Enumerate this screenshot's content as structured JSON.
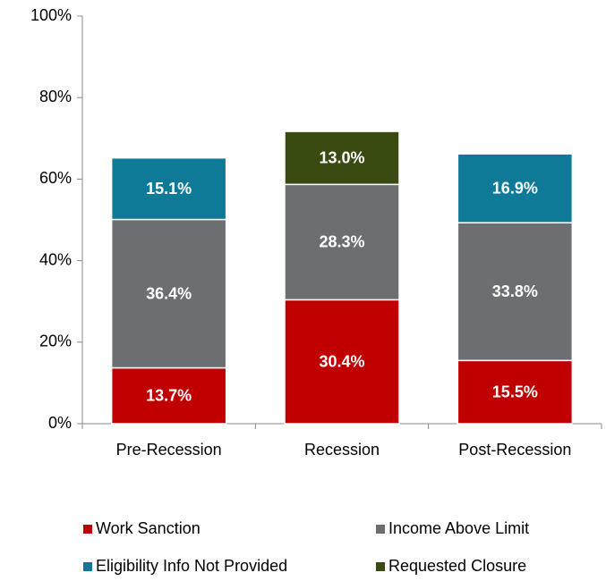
{
  "chart_data": {
    "type": "stacked-bar",
    "categories": [
      "Pre-Recession",
      "Recession",
      "Post-Recession"
    ],
    "series": [
      {
        "name": "Work Sanction",
        "color": "#c00000",
        "values": [
          13.7,
          30.4,
          15.5
        ],
        "value_labels": [
          "13.7%",
          "30.4%",
          "15.5%"
        ]
      },
      {
        "name": "Income Above Limit",
        "color": "#6d6e71",
        "values": [
          36.4,
          28.3,
          33.8
        ],
        "value_labels": [
          "36.4%",
          "28.3%",
          "33.8%"
        ]
      },
      {
        "name": "Eligibility Info Not Provided",
        "color": "#0f7a98",
        "values": [
          15.1,
          null,
          16.9
        ],
        "value_labels": [
          "15.1%",
          null,
          "16.9%"
        ]
      },
      {
        "name": "Requested Closure",
        "color": "#3a4b12",
        "values": [
          null,
          13.0,
          null
        ],
        "value_labels": [
          null,
          "13.0%",
          null
        ]
      }
    ],
    "ylim": [
      0,
      100
    ],
    "yticks": [
      {
        "value": 0,
        "label": "0%"
      },
      {
        "value": 20,
        "label": "20%"
      },
      {
        "value": 40,
        "label": "40%"
      },
      {
        "value": 60,
        "label": "60%"
      },
      {
        "value": 80,
        "label": "80%"
      },
      {
        "value": 100,
        "label": "100%"
      }
    ]
  }
}
